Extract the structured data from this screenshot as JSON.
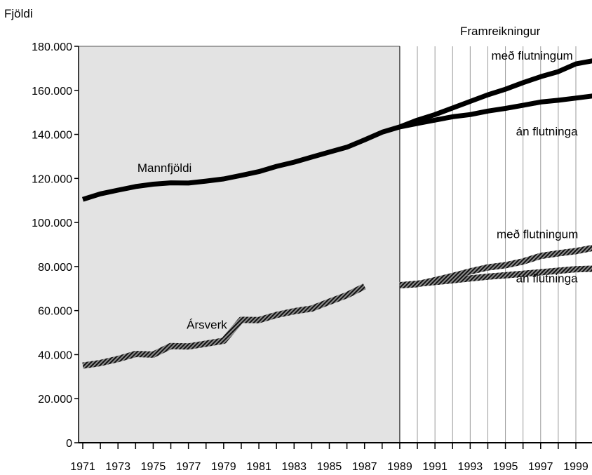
{
  "chart_data": {
    "type": "line",
    "ylabel": "Fjöldi",
    "projection_label": "Framreikningur",
    "ylim": [
      0,
      180000
    ],
    "xlim": [
      1971,
      2000
    ],
    "shaded_region": [
      1971,
      1989
    ],
    "divider_year": 1989,
    "grid": "vertical lines at each year in projection region",
    "y_ticks": [
      "0",
      "20.000",
      "40.000",
      "60.000",
      "80.000",
      "100.000",
      "120.000",
      "140.000",
      "160.000",
      "180.000"
    ],
    "y_tick_values": [
      0,
      20000,
      40000,
      60000,
      80000,
      100000,
      120000,
      140000,
      160000,
      180000
    ],
    "x_tick_labels": [
      "1971",
      "1973",
      "1975",
      "1977",
      "1979",
      "1981",
      "1983",
      "1985",
      "1987",
      "1989",
      "1991",
      "1993",
      "1995",
      "1997",
      "1999"
    ],
    "x_tick_values": [
      1971,
      1973,
      1975,
      1977,
      1979,
      1981,
      1983,
      1985,
      1987,
      1989,
      1991,
      1993,
      1995,
      1997,
      1999
    ],
    "series": [
      {
        "name": "Mannfjöldi",
        "style": "solid-thick",
        "x": [
          1971,
          1972,
          1973,
          1974,
          1975,
          1976,
          1977,
          1978,
          1979,
          1980,
          1981,
          1982,
          1983,
          1984,
          1985,
          1986,
          1987,
          1988,
          1989
        ],
        "y": [
          110500,
          113000,
          114700,
          116300,
          117400,
          118000,
          117900,
          118800,
          119800,
          121400,
          123100,
          125500,
          127400,
          129700,
          132000,
          134200,
          137500,
          141000,
          143400
        ]
      },
      {
        "name": "með flutningum",
        "style": "solid-thick",
        "x": [
          1989,
          1990,
          1991,
          1992,
          1993,
          1994,
          1995,
          1996,
          1997,
          1998,
          1999,
          2000
        ],
        "y": [
          143400,
          146500,
          149000,
          152000,
          155000,
          158000,
          160500,
          163500,
          166200,
          168500,
          172000,
          173500
        ]
      },
      {
        "name": "án flutninga",
        "style": "solid-thick",
        "x": [
          1989,
          1990,
          1991,
          1992,
          1993,
          1994,
          1995,
          1996,
          1997,
          1998,
          1999,
          2000
        ],
        "y": [
          143400,
          145000,
          146500,
          148000,
          149000,
          150600,
          151800,
          153200,
          154700,
          155500,
          156500,
          157500
        ]
      },
      {
        "name": "Ársverk",
        "style": "hatched-thick",
        "x": [
          1971,
          1972,
          1973,
          1974,
          1975,
          1976,
          1977,
          1978,
          1979,
          1980,
          1981,
          1982,
          1983,
          1984,
          1985,
          1986,
          1987
        ],
        "y": [
          35000,
          36200,
          38000,
          40300,
          40000,
          43900,
          43700,
          45000,
          46300,
          55800,
          55700,
          58000,
          59700,
          60900,
          64000,
          67000,
          71000
        ]
      },
      {
        "name": "með flutningum",
        "style": "hatched-thick",
        "x": [
          1989,
          1990,
          1991,
          1992,
          1993,
          1994,
          1995,
          1996,
          1997,
          1998,
          1999,
          2000
        ],
        "y": [
          71500,
          72000,
          73800,
          75700,
          77800,
          79600,
          80600,
          82300,
          84800,
          86000,
          87000,
          88500
        ]
      },
      {
        "name": "án flutninga",
        "style": "hatched-thick",
        "x": [
          1989,
          1990,
          1991,
          1992,
          1993,
          1994,
          1995,
          1996,
          1997,
          1998,
          1999,
          2000
        ],
        "y": [
          71500,
          72200,
          73000,
          73800,
          74600,
          75400,
          76000,
          76700,
          77400,
          78100,
          78800,
          79000
        ]
      }
    ],
    "annotations": [
      {
        "text": "Mannfjöldi",
        "x": 1974.1,
        "y": 123000
      },
      {
        "text": "Ársverk",
        "x": 1976.9,
        "y": 51800
      },
      {
        "text": "með flutningum",
        "x": 1994.2,
        "y": 174000
      },
      {
        "text": "án flutninga",
        "x": 1995.6,
        "y": 139500
      },
      {
        "text": "með flutningum",
        "x": 1994.5,
        "y": 92800
      },
      {
        "text": "án flutninga",
        "x": 1995.6,
        "y": 72800
      }
    ]
  },
  "colors": {
    "shade": "#e3e3e3",
    "line": "#000000",
    "hatch_dark": "#111111",
    "hatch_light": "#8c8c8c"
  }
}
